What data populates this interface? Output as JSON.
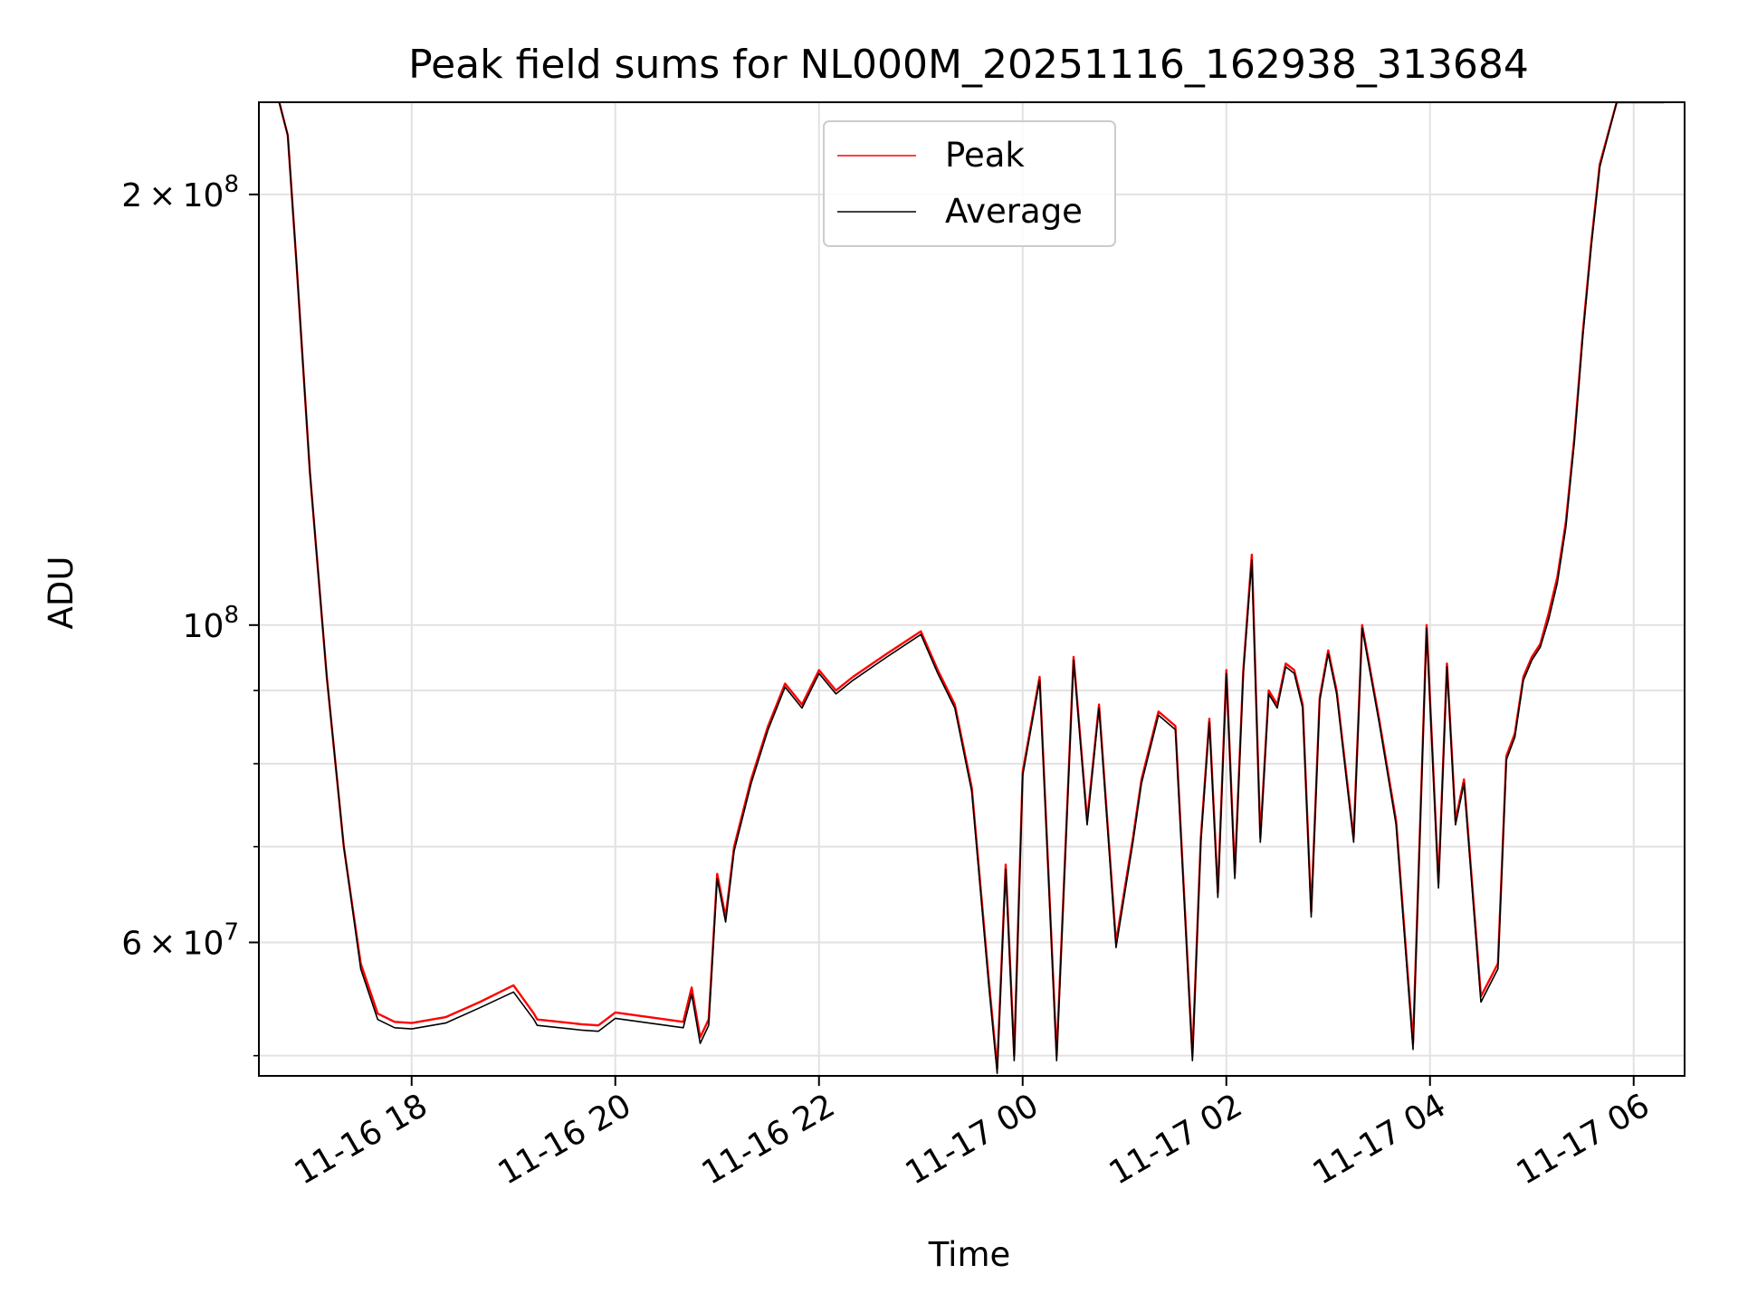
{
  "chart_data": {
    "type": "line",
    "title": "Peak field sums for NL000M_20251116_162938_313684",
    "xlabel": "Time",
    "ylabel": "ADU",
    "y_scale": "log",
    "ylim": [
      48400000,
      232000000
    ],
    "xlim": [
      "2025-11-16 16:30",
      "2025-11-17 06:30"
    ],
    "grid": true,
    "legend_position": "top-center",
    "x_ticks": [
      "11-16 18",
      "11-16 20",
      "11-16 22",
      "11-17 00",
      "11-17 02",
      "11-17 04",
      "11-17 06"
    ],
    "x_tick_times": [
      "2025-11-16 18:00",
      "2025-11-16 20:00",
      "2025-11-16 22:00",
      "2025-11-17 00:00",
      "2025-11-17 02:00",
      "2025-11-17 04:00",
      "2025-11-17 06:00"
    ],
    "y_ticks_major": [
      {
        "value": 200000000,
        "mant": "2",
        "exp": "8",
        "label_mult": true
      },
      {
        "value": 100000000,
        "mant": "",
        "exp": "8",
        "label_mult": false
      },
      {
        "value": 60000000,
        "mant": "6",
        "exp": "7",
        "label_mult": true
      }
    ],
    "y_ticks_minor": [
      50000000,
      70000000,
      80000000,
      90000000
    ],
    "times": [
      "2025-11-16 16:42",
      "2025-11-16 16:47",
      "2025-11-16 16:52",
      "2025-11-16 17:00",
      "2025-11-16 17:10",
      "2025-11-16 17:20",
      "2025-11-16 17:30",
      "2025-11-16 17:40",
      "2025-11-16 17:50",
      "2025-11-16 18:00",
      "2025-11-16 18:20",
      "2025-11-16 18:40",
      "2025-11-16 19:00",
      "2025-11-16 19:12",
      "2025-11-16 19:14",
      "2025-11-16 19:40",
      "2025-11-16 19:50",
      "2025-11-16 20:00",
      "2025-11-16 20:30",
      "2025-11-16 20:40",
      "2025-11-16 20:45",
      "2025-11-16 20:50",
      "2025-11-16 20:55",
      "2025-11-16 21:00",
      "2025-11-16 21:05",
      "2025-11-16 21:10",
      "2025-11-16 21:20",
      "2025-11-16 21:30",
      "2025-11-16 21:40",
      "2025-11-16 21:50",
      "2025-11-16 22:00",
      "2025-11-16 22:10",
      "2025-11-16 22:20",
      "2025-11-16 22:40",
      "2025-11-16 23:00",
      "2025-11-16 23:10",
      "2025-11-16 23:20",
      "2025-11-16 23:30",
      "2025-11-16 23:40",
      "2025-11-16 23:45",
      "2025-11-16 23:50",
      "2025-11-16 23:55",
      "2025-11-17 00:00",
      "2025-11-17 00:10",
      "2025-11-17 00:20",
      "2025-11-17 00:30",
      "2025-11-17 00:38",
      "2025-11-17 00:45",
      "2025-11-17 00:55",
      "2025-11-17 01:05",
      "2025-11-17 01:10",
      "2025-11-17 01:20",
      "2025-11-17 01:30",
      "2025-11-17 01:40",
      "2025-11-17 01:45",
      "2025-11-17 01:50",
      "2025-11-17 01:55",
      "2025-11-17 02:00",
      "2025-11-17 02:05",
      "2025-11-17 02:10",
      "2025-11-17 02:15",
      "2025-11-17 02:20",
      "2025-11-17 02:25",
      "2025-11-17 02:30",
      "2025-11-17 02:35",
      "2025-11-17 02:40",
      "2025-11-17 02:45",
      "2025-11-17 02:50",
      "2025-11-17 02:55",
      "2025-11-17 03:00",
      "2025-11-17 03:05",
      "2025-11-17 03:15",
      "2025-11-17 03:20",
      "2025-11-17 03:30",
      "2025-11-17 03:40",
      "2025-11-17 03:50",
      "2025-11-17 03:58",
      "2025-11-17 04:05",
      "2025-11-17 04:10",
      "2025-11-17 04:15",
      "2025-11-17 04:20",
      "2025-11-17 04:30",
      "2025-11-17 04:40",
      "2025-11-17 04:45",
      "2025-11-17 04:50",
      "2025-11-17 04:55",
      "2025-11-17 05:00",
      "2025-11-17 05:05",
      "2025-11-17 05:10",
      "2025-11-17 05:15",
      "2025-11-17 05:20",
      "2025-11-17 05:25",
      "2025-11-17 05:30",
      "2025-11-17 05:35",
      "2025-11-17 05:40",
      "2025-11-17 05:50",
      "2025-11-17 05:58",
      "2025-11-17 06:05",
      "2025-11-17 06:12",
      "2025-11-17 06:18"
    ],
    "series": [
      {
        "name": "Peak",
        "color": "#ff0000",
        "values": [
          232000000,
          220000000,
          180000000,
          128000000,
          92000000,
          70000000,
          58000000,
          53500000,
          52800000,
          52700000,
          53200000,
          54500000,
          56000000,
          53500000,
          53000000,
          52600000,
          52500000,
          53600000,
          53000000,
          52800000,
          55800000,
          51500000,
          53000000,
          67000000,
          62500000,
          70000000,
          78000000,
          85000000,
          91000000,
          88000000,
          93000000,
          90000000,
          92000000,
          95500000,
          99000000,
          93000000,
          88000000,
          77000000,
          56500000,
          49000000,
          68000000,
          50000000,
          79000000,
          92000000,
          50000000,
          95000000,
          73000000,
          88000000,
          60000000,
          71000000,
          78000000,
          87000000,
          85000000,
          50000000,
          71000000,
          86000000,
          65000000,
          93000000,
          67000000,
          93000000,
          112000000,
          71000000,
          90000000,
          88000000,
          94000000,
          93000000,
          88000000,
          63000000,
          89000000,
          96000000,
          90000000,
          71000000,
          100000000,
          86000000,
          73000000,
          51000000,
          100000000,
          66000000,
          94000000,
          73000000,
          78000000,
          55000000,
          58000000,
          81000000,
          84000000,
          92000000,
          95000000,
          97000000,
          102000000,
          108000000,
          118000000,
          135000000,
          160000000,
          185000000,
          210000000,
          232000000,
          232000000,
          232000000,
          232000000,
          232000000
        ]
      },
      {
        "name": "Average",
        "color": "#000000",
        "values": [
          232000000,
          220000000,
          180000000,
          128000000,
          92000000,
          70000000,
          57500000,
          53000000,
          52300000,
          52200000,
          52700000,
          54000000,
          55400000,
          53000000,
          52500000,
          52100000,
          52000000,
          53100000,
          52500000,
          52300000,
          55200000,
          51000000,
          52500000,
          66500000,
          62000000,
          69500000,
          77500000,
          84500000,
          90500000,
          87500000,
          92500000,
          89500000,
          91500000,
          95000000,
          98500000,
          92500000,
          87500000,
          76500000,
          56000000,
          48600000,
          67500000,
          49600000,
          78500000,
          91500000,
          49600000,
          94500000,
          72500000,
          87500000,
          59500000,
          70500000,
          77500000,
          86500000,
          84500000,
          49600000,
          70500000,
          85500000,
          64500000,
          92500000,
          66500000,
          92500000,
          111000000,
          70500000,
          89500000,
          87500000,
          93500000,
          92500000,
          87500000,
          62500000,
          88500000,
          95500000,
          89500000,
          70500000,
          99500000,
          85500000,
          72500000,
          50500000,
          99500000,
          65500000,
          93500000,
          72500000,
          77500000,
          54500000,
          57500000,
          80500000,
          83500000,
          91500000,
          94500000,
          96500000,
          101000000,
          107000000,
          117000000,
          134000000,
          159000000,
          184000000,
          209000000,
          232000000,
          232000000,
          232000000,
          232000000,
          232000000
        ]
      }
    ]
  }
}
